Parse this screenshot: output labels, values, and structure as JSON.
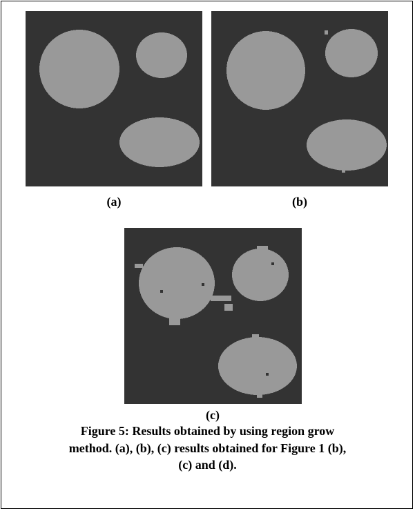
{
  "figure": {
    "panels": [
      {
        "label": "(a)"
      },
      {
        "label": "(b)"
      },
      {
        "label": "(c)"
      }
    ],
    "caption_lines": [
      "Figure 5: Results obtained by using region grow",
      "method. (a), (b), (c) results obtained for Figure 1 (b),",
      "(c) and (d)."
    ]
  }
}
